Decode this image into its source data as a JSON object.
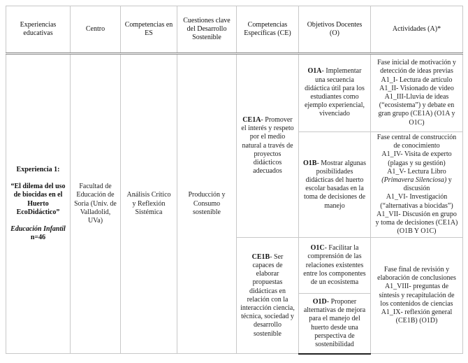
{
  "headers": [
    "Experiencias educativas",
    "Centro",
    "Competencias en ES",
    "Cuestiones clave del Desarrollo Sostenible",
    "Competencias Específicas (CE)",
    "Objetivos Docentes (O)",
    "Actividades (A)*"
  ],
  "experience": {
    "label": "Experiencia 1:",
    "title": "“El dilema del uso de biocidas en el Huerto EcoDidáctico”",
    "level": "Educación Infantil",
    "n": "n=46"
  },
  "centro": "Facultad de Educación de Soria (Univ. de Valladolid, UVa)",
  "competencias_es": "Análisis Crítico y Reflexión Sistémica",
  "cuestiones": "Producción y Consumo sostenible",
  "ce": [
    {
      "code": "CE1A",
      "text": "- Promover el interés y respeto por el medio natural a través de proyectos didácticos adecuados"
    },
    {
      "code": "CE1B",
      "text": "- Ser capaces de elaborar propuestas didácticas en relación con la interacción ciencia, técnica, sociedad y desarrollo sostenible"
    }
  ],
  "objetivos": [
    {
      "code": "O1A",
      "text": "- Implementar una secuencia didáctica útil para los estudiantes como ejemplo experiencial, vivenciado"
    },
    {
      "code": "O1B",
      "text": "- Mostrar algunas posibilidades didácticas del huerto escolar basadas en la toma de decisiones de manejo"
    },
    {
      "code": "O1C",
      "text": "- Facilitar la comprensión de las relaciones existentes entre los componentes de un ecosistema"
    },
    {
      "code": "O1D",
      "text": "- Proponer alternativas de mejora para el manejo del huerto desde una perspectiva de sostenibilidad"
    }
  ],
  "actividades": {
    "a1": [
      "Fase inicial de motivación y detección de ideas previas",
      "A1_I- Lectura de artículo",
      "A1_II- Visionado de video",
      "A1_III-Lluvia de ideas (“ecosistema”) y debate en gran grupo (CE1A) (O1A y O1C)"
    ],
    "a2": {
      "lines": [
        "Fase central de construcción de conocimiento",
        "A1_IV- Visita de experto (plagas y su gestión)"
      ],
      "libro_pre": "A1_V- Lectura Libro ",
      "libro_title": "Primavera Silenciosa",
      "libro_post": " y discusión",
      "lines2": [
        "A1_VI- Investigación (“alternativas a biocidas”)",
        "A1_VII- Discusión en grupo y toma de decisiones (CE1A) (O1B Y O1C)"
      ]
    },
    "a3": [
      "Fase final de revisión y elaboración de conclusiones",
      "A1_VIII- preguntas de síntesis y recapitulación de los contenidos de ciencias",
      "A1_IX- reflexión general (CE1B) (O1D)"
    ]
  }
}
